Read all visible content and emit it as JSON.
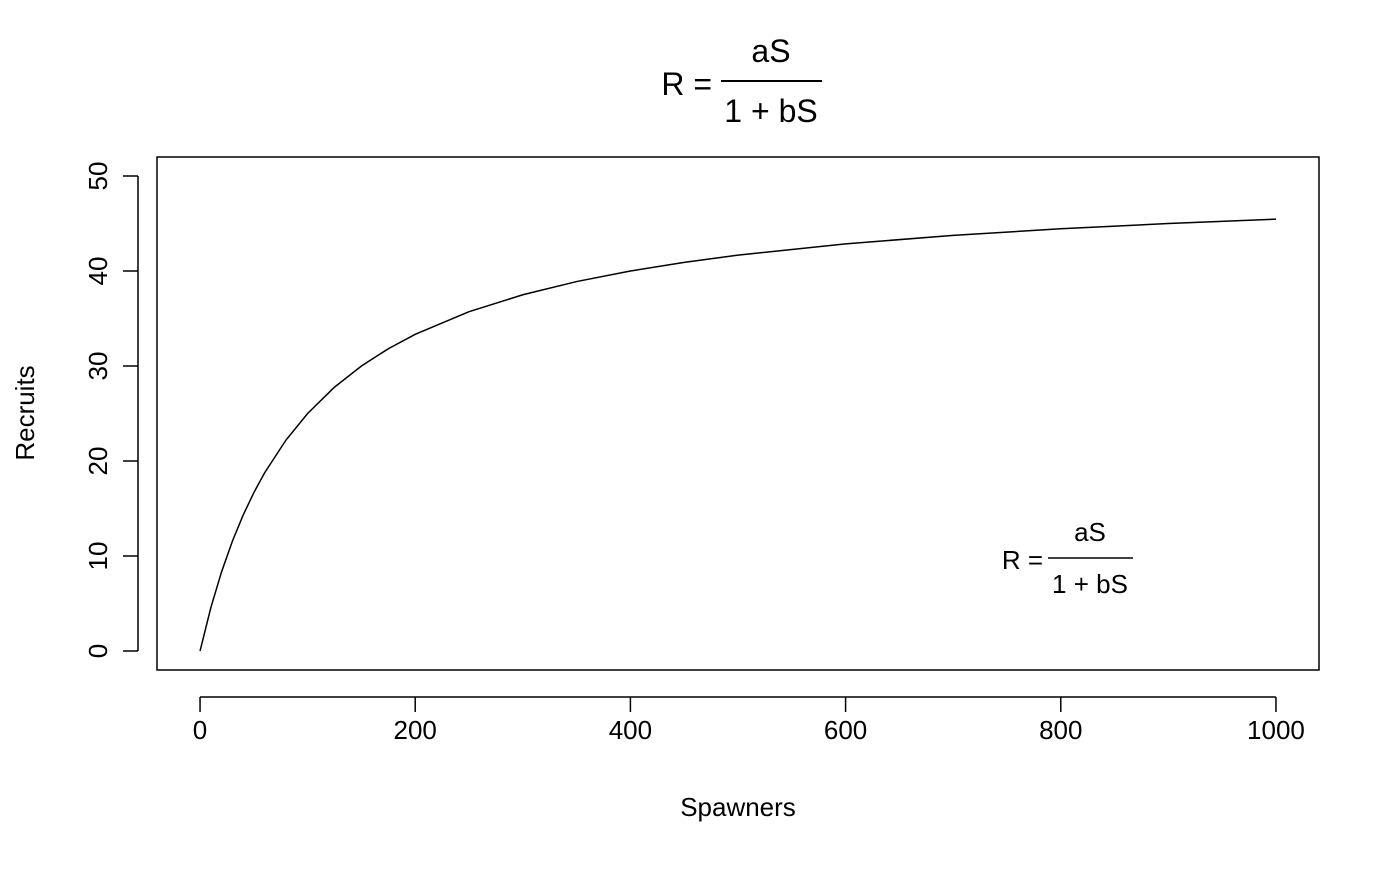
{
  "chart_data": {
    "type": "line",
    "title": {
      "lhs": "R =",
      "numerator": "aS",
      "denominator": "1 + bS"
    },
    "annotation": {
      "lhs": "R =",
      "numerator": "aS",
      "denominator": "1 + bS",
      "anchor": [
        800,
        10
      ]
    },
    "xlabel": "Spawners",
    "ylabel": "Recruits",
    "xlim": [
      -40,
      1040
    ],
    "ylim": [
      -2,
      52
    ],
    "xticks": [
      0,
      200,
      400,
      600,
      800,
      1000
    ],
    "yticks": [
      0,
      10,
      20,
      30,
      40,
      50
    ],
    "grid": false,
    "series": [
      {
        "model": "R = aS / (1 + bS)",
        "params": {
          "a": 0.5,
          "b": 0.01
        },
        "x": [
          0,
          10,
          20,
          30,
          40,
          50,
          60,
          80,
          100,
          125,
          150,
          175,
          200,
          250,
          300,
          350,
          400,
          450,
          500,
          600,
          700,
          800,
          900,
          1000
        ],
        "y": [
          0,
          4.545,
          8.333,
          11.538,
          14.286,
          16.667,
          18.75,
          22.222,
          25.0,
          27.778,
          30.0,
          31.818,
          33.333,
          35.714,
          37.5,
          38.889,
          40.0,
          40.909,
          41.667,
          42.857,
          43.75,
          44.444,
          45.0,
          45.455
        ],
        "color": "#000000"
      }
    ]
  }
}
